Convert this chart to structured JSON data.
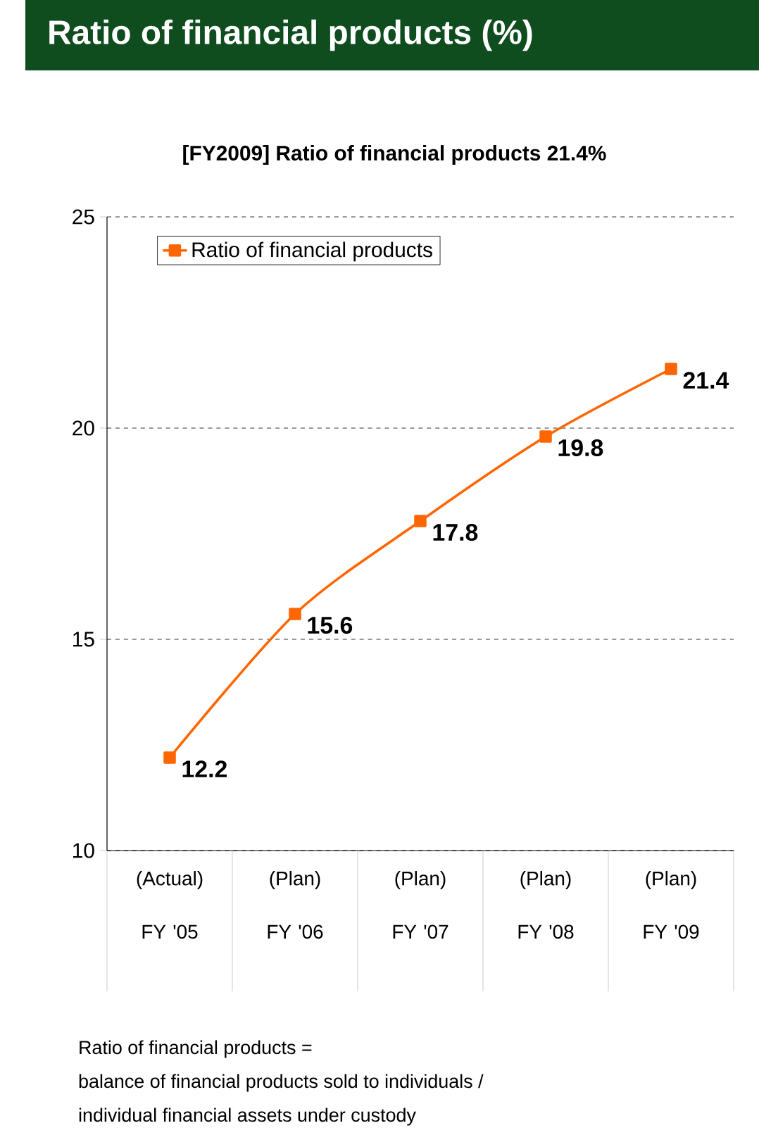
{
  "chart_data": {
    "type": "line",
    "title": "Ratio of financial products (%)",
    "subtitle": "[FY2009] Ratio of financial products 21.4%",
    "categories": [
      "(Actual) FY '05",
      "(Plan) FY '06",
      "(Plan) FY '07",
      "(Plan) FY '08",
      "(Plan) FY '09"
    ],
    "series": [
      {
        "name": "Ratio of financial products",
        "color": "#ff6600",
        "values": [
          12.2,
          15.6,
          17.8,
          19.8,
          21.4
        ]
      }
    ],
    "ylim": [
      10,
      25
    ],
    "yticks": [
      10,
      15,
      20,
      25
    ],
    "grid": "y",
    "legend": "top left",
    "marker": "square",
    "line_style": "solid",
    "data_labels": true,
    "annotations": [
      "Ratio of financial products =",
      "balance of financial products sold to individuals /",
      "individual financial assets under custody"
    ]
  }
}
